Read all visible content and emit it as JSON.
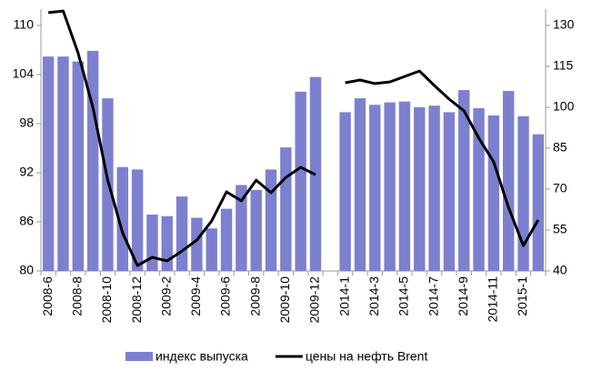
{
  "chart_data": {
    "type": "bar-line",
    "categories": [
      "2008-6",
      null,
      "2008-8",
      null,
      "2008-10",
      null,
      "2008-12",
      null,
      "2009-2",
      null,
      "2009-4",
      null,
      "2009-6",
      null,
      "2009-8",
      null,
      "2009-10",
      null,
      "2009-12",
      null,
      "2014-1",
      null,
      "2014-3",
      null,
      "2014-5",
      null,
      "2014-7",
      null,
      "2014-9",
      null,
      "2014-11",
      null,
      "2015-1",
      null
    ],
    "series": [
      {
        "name": "индекс выпуска",
        "type": "bar",
        "color": "#7d80cf",
        "axis": "y",
        "values": [
          106.2,
          106.2,
          105.6,
          106.9,
          101.1,
          92.7,
          92.4,
          86.9,
          86.7,
          89.1,
          86.5,
          85.2,
          87.6,
          90.5,
          89.9,
          92.4,
          95.1,
          101.9,
          103.7,
          null,
          99.4,
          101.1,
          100.3,
          100.6,
          100.7,
          100.0,
          100.2,
          99.4,
          102.1,
          99.9,
          99.0,
          102.0,
          98.9,
          96.7
        ]
      },
      {
        "name": "цены на нефть Brent",
        "type": "line",
        "color": "#000000",
        "axis": "y2",
        "values": [
          134.7,
          135.3,
          120,
          100,
          73.3,
          54,
          42,
          45,
          43.7,
          47.3,
          51.3,
          58.3,
          69,
          65.7,
          73.3,
          68.7,
          74.3,
          78,
          75.3,
          null,
          109,
          110,
          108.7,
          109.3,
          111.3,
          113.3,
          108,
          103,
          98.7,
          88.7,
          80,
          63.3,
          49.3,
          58.7
        ]
      }
    ],
    "ylim": [
      80,
      112
    ],
    "yticks": [
      80,
      86,
      92,
      98,
      104,
      110
    ],
    "y2lim": [
      40,
      136
    ],
    "y2ticks": [
      40,
      55,
      70,
      85,
      100,
      115,
      130
    ],
    "grid": false
  }
}
